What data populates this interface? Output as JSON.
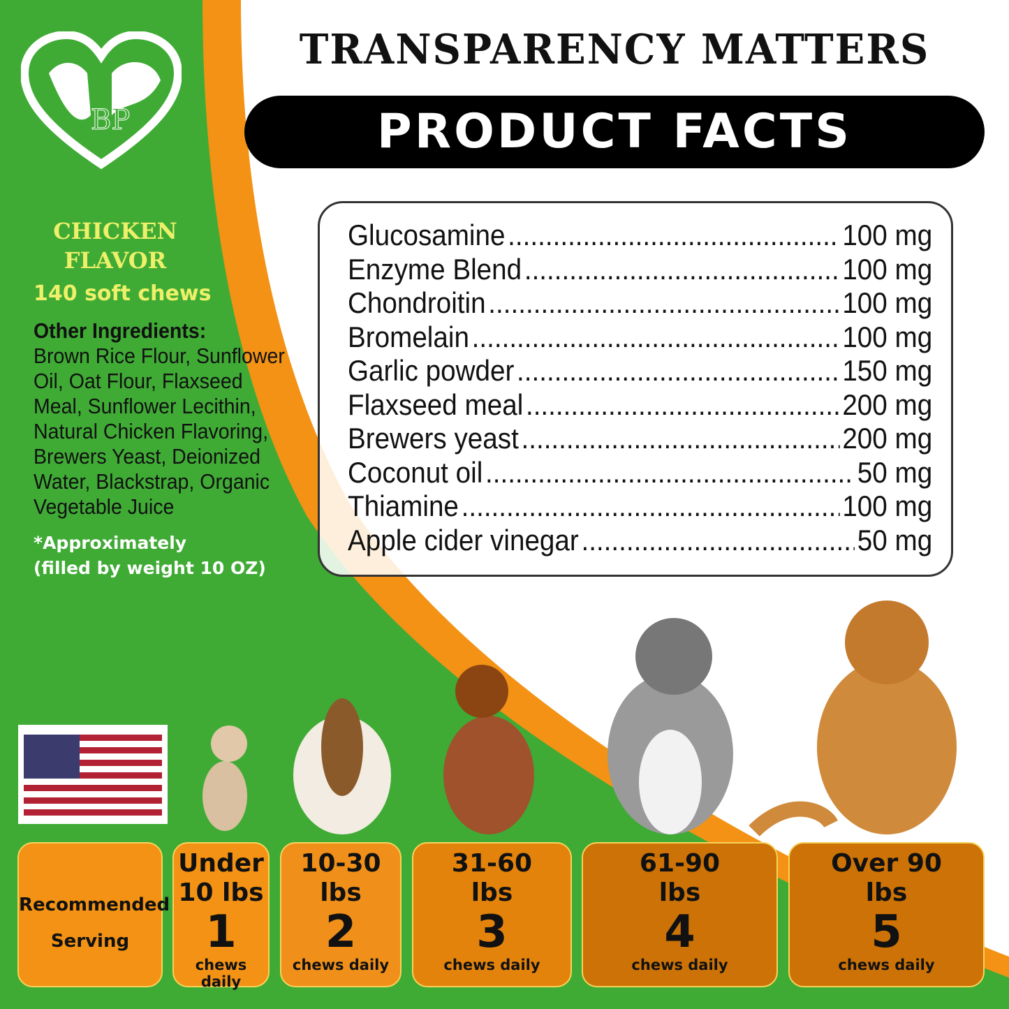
{
  "colors": {
    "green": "#3fab35",
    "orange": "#f39214",
    "white": "#ffffff",
    "label_yellow": "#eef06a"
  },
  "logo": {
    "monogram": "BP",
    "icon": "heart-cat-dog-logo"
  },
  "header": {
    "title": "TRANSPARENCY MATTERS",
    "banner": "PRODUCT FACTS"
  },
  "facts": [
    {
      "name": "Glucosamine",
      "amount": "100 mg"
    },
    {
      "name": "Enzyme Blend",
      "amount": "100 mg"
    },
    {
      "name": "Chondroitin",
      "amount": "100 mg"
    },
    {
      "name": "Bromelain",
      "amount": "100 mg"
    },
    {
      "name": "Garlic powder",
      "amount": "150 mg"
    },
    {
      "name": "Flaxseed meal",
      "amount": "200 mg"
    },
    {
      "name": "Brewers yeast",
      "amount": "200 mg"
    },
    {
      "name": "Coconut oil",
      "amount": "50 mg"
    },
    {
      "name": "Thiamine",
      "amount": "100 mg"
    },
    {
      "name": "Apple cider vinegar",
      "amount": "50 mg"
    }
  ],
  "side": {
    "flavor_line1": "CHICKEN",
    "flavor_line2": "FLAVOR",
    "count": "140 soft chews",
    "other_heading": "Other Ingredients:",
    "other_text": "Brown Rice Flour, Sunflower Oil, Oat Flour, Flaxseed Meal, Sunflower Lecithin, Natural Chicken Flavoring, Brewers Yeast, Deionized Water, Blackstrap, Organic Vegetable Juice",
    "approx_line1": "*Approximately",
    "approx_line2": "(filled by weight 10 OZ)"
  },
  "flag": {
    "icon": "us-flag-icon"
  },
  "serving": {
    "label_line1": "Recommended",
    "label_line2": "Serving",
    "tiers": [
      {
        "weight1": "Under",
        "weight2": "10 lbs",
        "count": "1",
        "unit": "chews daily",
        "color": "#f39214"
      },
      {
        "weight1": "10-30",
        "weight2": "lbs",
        "count": "2",
        "unit": "chews daily",
        "color": "#f0901a"
      },
      {
        "weight1": "31-60",
        "weight2": "lbs",
        "count": "3",
        "unit": "chews daily",
        "color": "#e3830c"
      },
      {
        "weight1": "61-90",
        "weight2": "lbs",
        "count": "4",
        "unit": "chews daily",
        "color": "#cc7206"
      },
      {
        "weight1": "Over 90",
        "weight2": "lbs",
        "count": "5",
        "unit": "chews daily",
        "color": "#cc7206"
      }
    ]
  }
}
